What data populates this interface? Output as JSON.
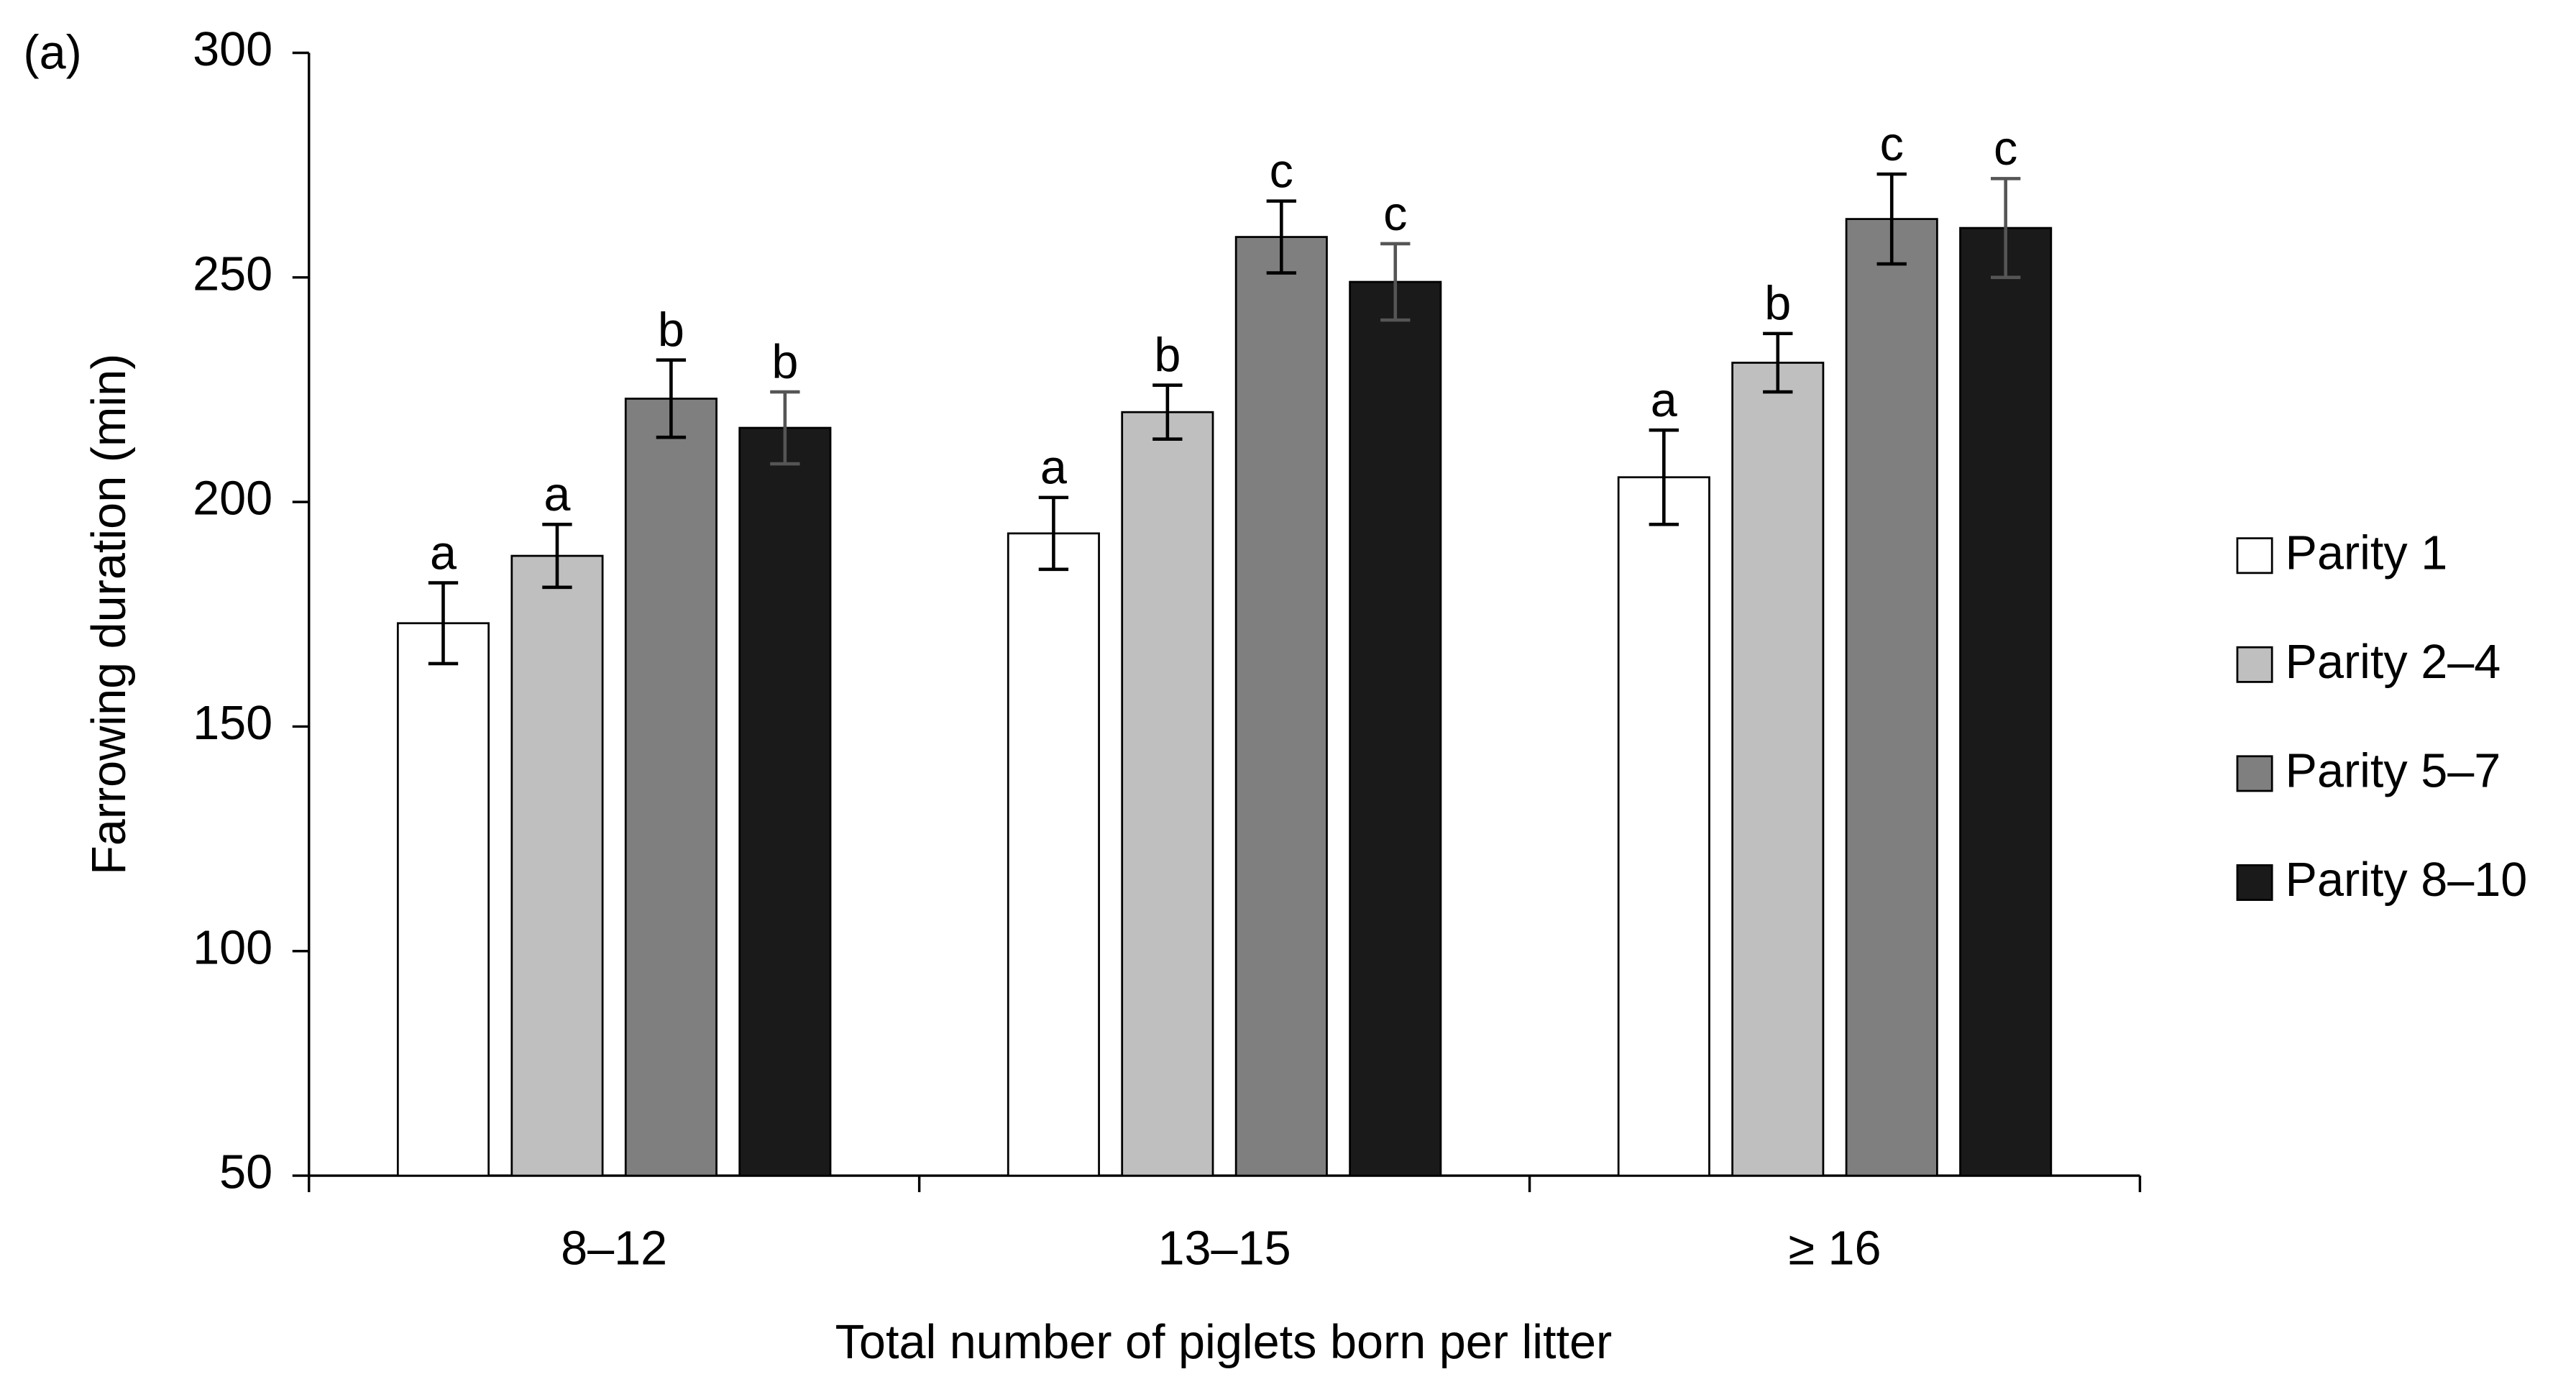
{
  "chart_data": {
    "type": "bar",
    "panel_label": "(a)",
    "x_label": "Total number of piglets born per litter",
    "y_label": "Farrowing duration (min)",
    "categories": [
      "8–12",
      "13–15",
      "≥ 16"
    ],
    "series": [
      {
        "name": "Parity 1",
        "color": "#ffffff",
        "values": [
          173,
          193,
          205.5
        ],
        "errors": [
          9,
          8,
          10.5
        ],
        "letters": [
          "a",
          "a",
          "a"
        ]
      },
      {
        "name": "Parity 2–4",
        "color": "#bfbfbf",
        "values": [
          188,
          220,
          231
        ],
        "errors": [
          7,
          6,
          6.5
        ],
        "letters": [
          "a",
          "b",
          "b"
        ]
      },
      {
        "name": "Parity 5–7",
        "color": "#7f7f7f",
        "values": [
          223,
          259,
          263
        ],
        "errors": [
          8.6,
          8,
          10
        ],
        "letters": [
          "b",
          "c",
          "c"
        ]
      },
      {
        "name": "Parity 8–10",
        "color": "#1a1a1a",
        "values": [
          216.5,
          249,
          261
        ],
        "errors": [
          8,
          8.5,
          11
        ],
        "letters": [
          "b",
          "c",
          "c"
        ]
      }
    ],
    "ylim": [
      50,
      300
    ],
    "yticks": [
      50,
      100,
      150,
      200,
      250,
      300
    ],
    "grid": false,
    "legend": "right"
  }
}
